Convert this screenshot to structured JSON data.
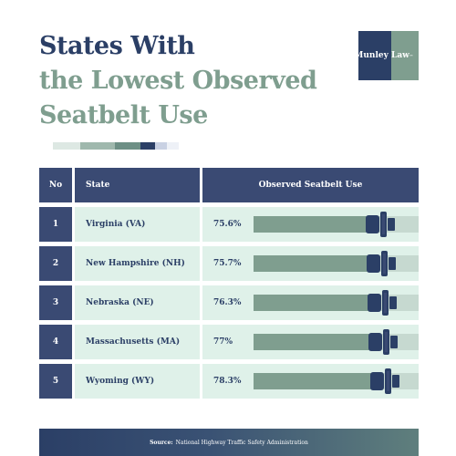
{
  "title": {
    "line1": "States With",
    "line2": "the Lowest Observed",
    "line3": "Seatbelt Use"
  },
  "logo": {
    "left_text": "Munley",
    "right_text": "Law",
    "mark": "™"
  },
  "colors": {
    "navy": "#2b3f66",
    "header_blue": "#3a4a73",
    "sage": "#7f9e8f",
    "mint": "#dff1e9",
    "track": "#c6d9d0"
  },
  "table": {
    "headers": {
      "no": "No",
      "state": "State",
      "observed": "Observed Seatbelt Use"
    }
  },
  "chart_data": {
    "type": "bar",
    "categories": [
      "Virginia (VA)",
      "New Hampshire (NH)",
      "Nebraska (NE)",
      "Massachusetts (MA)",
      "Wyoming (WY)"
    ],
    "values": [
      75.6,
      75.7,
      76.3,
      77,
      78.3
    ],
    "value_labels": [
      "75.6%",
      "75.7%",
      "76.3%",
      "77%",
      "78.3%"
    ],
    "ranks": [
      "1",
      "2",
      "3",
      "4",
      "5"
    ],
    "xlim": [
      0,
      100
    ]
  },
  "footer": {
    "label": "Source:",
    "text": "National Highway Traffic Safety Administration"
  }
}
